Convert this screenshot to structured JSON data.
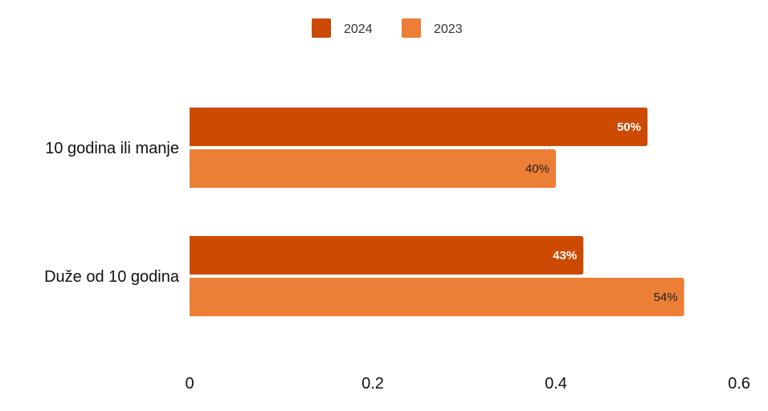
{
  "chart_data": {
    "type": "bar",
    "orientation": "horizontal",
    "categories": [
      "10 godina ili manje",
      "Duže od 10 godina"
    ],
    "series": [
      {
        "name": "2024",
        "values": [
          0.5,
          0.43
        ],
        "labels": [
          "50%",
          "43%"
        ],
        "color": "#cc4a04",
        "label_color": "#ffffff",
        "label_bold": true
      },
      {
        "name": "2023",
        "values": [
          0.4,
          0.54
        ],
        "labels": [
          "40%",
          "54%"
        ],
        "color": "#ec7e35",
        "label_color": "#222222",
        "label_bold": false
      }
    ],
    "xlim": [
      0,
      0.6
    ],
    "xticks": [
      0,
      0.2,
      0.4,
      0.6
    ],
    "xtick_labels": [
      "0",
      "0.2",
      "0.4",
      "0.6"
    ],
    "legend_position": "top-center",
    "grid": false
  }
}
